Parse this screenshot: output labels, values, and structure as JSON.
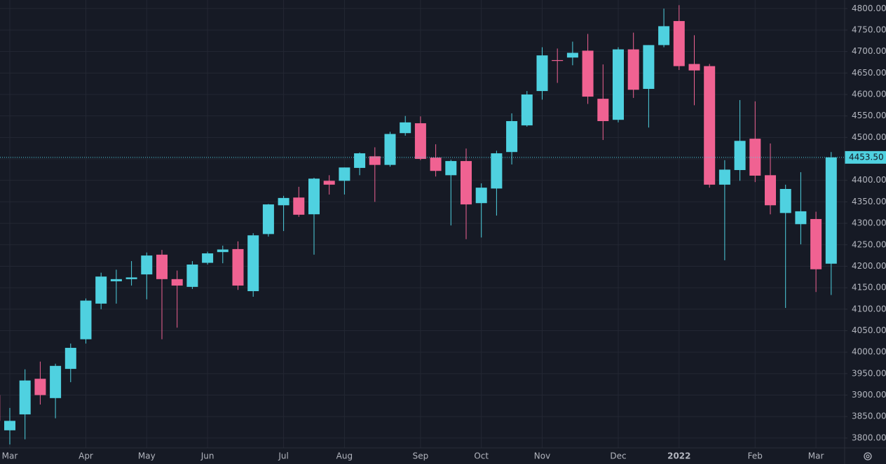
{
  "chart_data": {
    "type": "candlestick",
    "categories": [
      null,
      "Mar",
      null,
      null,
      null,
      null,
      "Apr",
      null,
      null,
      null,
      "May",
      null,
      null,
      null,
      "Jun",
      null,
      null,
      null,
      null,
      "Jul",
      null,
      null,
      null,
      "Aug",
      null,
      null,
      null,
      null,
      "Sep",
      null,
      null,
      null,
      "Oct",
      null,
      null,
      null,
      "Nov",
      null,
      null,
      null,
      null,
      "Dec",
      null,
      null,
      null,
      "2022",
      null,
      null,
      null,
      null,
      "Feb",
      null,
      null,
      null,
      "Mar",
      null
    ],
    "open": [
      3900,
      3818,
      3855,
      3938,
      3893,
      3961,
      4030,
      4113,
      4165,
      4170,
      4181,
      4227,
      4170,
      4152,
      4208,
      4233,
      4240,
      4142,
      4275,
      4342,
      4360,
      4321,
      4399,
      4399,
      4429,
      4456,
      4436,
      4510,
      4533,
      4453,
      4412,
      4445,
      4347,
      4381,
      4466,
      4528,
      4608,
      4680,
      4686,
      4702,
      4590,
      4541,
      4705,
      4613,
      4715,
      4771,
      4671,
      4666,
      4390,
      4424,
      4497,
      4412,
      4324,
      4298,
      4310,
      4206
    ],
    "high": [
      3910,
      3870,
      3960,
      3978,
      3973,
      4020,
      4125,
      4185,
      4192,
      4212,
      4232,
      4238,
      4190,
      4212,
      4234,
      4248,
      4258,
      4277,
      4345,
      4364,
      4385,
      4406,
      4412,
      4430,
      4465,
      4477,
      4513,
      4550,
      4549,
      4484,
      4448,
      4474,
      4393,
      4469,
      4556,
      4608,
      4710,
      4707,
      4723,
      4741,
      4670,
      4710,
      4744,
      4715,
      4800,
      4808,
      4738,
      4671,
      4447,
      4587,
      4584,
      4486,
      4390,
      4419,
      4327,
      4466
    ],
    "low": [
      3820,
      3785,
      3797,
      3878,
      3846,
      3930,
      4020,
      4100,
      4113,
      4155,
      4123,
      4030,
      4057,
      4147,
      4204,
      4207,
      4145,
      4129,
      4269,
      4282,
      4315,
      4227,
      4367,
      4367,
      4412,
      4350,
      4432,
      4504,
      4447,
      4409,
      4295,
      4263,
      4267,
      4318,
      4437,
      4525,
      4588,
      4627,
      4668,
      4578,
      4494,
      4535,
      4592,
      4523,
      4710,
      4657,
      4575,
      4383,
      4214,
      4399,
      4396,
      4321,
      4103,
      4251,
      4140,
      4133
    ],
    "close": [
      3840,
      3840,
      3934,
      3900,
      3968,
      4010,
      4120,
      4176,
      4170,
      4174,
      4225,
      4170,
      4155,
      4204,
      4230,
      4239,
      4155,
      4272,
      4344,
      4359,
      4320,
      4404,
      4390,
      4430,
      4463,
      4436,
      4508,
      4535,
      4450,
      4422,
      4445,
      4344,
      4383,
      4463,
      4538,
      4600,
      4691,
      4678,
      4697,
      4595,
      4538,
      4705,
      4611,
      4715,
      4759,
      4666,
      4656,
      4390,
      4425,
      4492,
      4411,
      4342,
      4380,
      4328,
      4193,
      4453.5
    ],
    "up_color": "#4fd1e0",
    "down_color": "#f06292",
    "ylim": [
      3777,
      4820
    ],
    "yticks": [
      {
        "value": 3800,
        "label": "3800.00"
      },
      {
        "value": 3850,
        "label": "3850.00"
      },
      {
        "value": 3900,
        "label": "3900.00"
      },
      {
        "value": 3950,
        "label": "3950.00"
      },
      {
        "value": 4000,
        "label": "4000.00"
      },
      {
        "value": 4050,
        "label": "4050.00"
      },
      {
        "value": 4100,
        "label": "4100.00"
      },
      {
        "value": 4150,
        "label": "4150.00"
      },
      {
        "value": 4200,
        "label": "4200.00"
      },
      {
        "value": 4250,
        "label": "4250.00"
      },
      {
        "value": 4300,
        "label": "4300.00"
      },
      {
        "value": 4350,
        "label": "4350.00"
      },
      {
        "value": 4400,
        "label": "4400.00"
      },
      {
        "value": 4450,
        "label": "4450.00"
      },
      {
        "value": 4500,
        "label": "4500.00"
      },
      {
        "value": 4550,
        "label": "4550.00"
      },
      {
        "value": 4600,
        "label": "4600.00"
      },
      {
        "value": 4650,
        "label": "4650.00"
      },
      {
        "value": 4700,
        "label": "4700.00"
      },
      {
        "value": 4750,
        "label": "4750.00"
      },
      {
        "value": 4800,
        "label": "4800.00"
      }
    ],
    "last_price": {
      "value": 4453.5,
      "label": "4453.50"
    },
    "grid": true
  }
}
